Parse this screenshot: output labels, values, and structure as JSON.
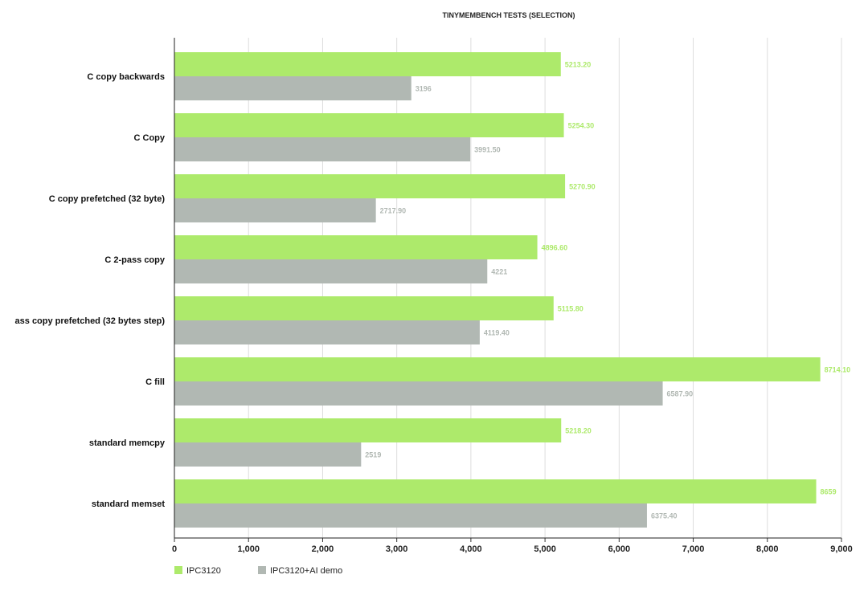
{
  "chart_data": {
    "type": "bar",
    "orientation": "horizontal",
    "title": "TINYMEMBENCH TESTS (SELECTION)",
    "xlabel": "",
    "ylabel": "",
    "xlim": [
      0,
      9000
    ],
    "x_ticks": [
      0,
      1000,
      2000,
      3000,
      4000,
      5000,
      6000,
      7000,
      8000,
      9000
    ],
    "x_tick_labels": [
      "0",
      "1,000",
      "2,000",
      "3,000",
      "4,000",
      "5,000",
      "6,000",
      "7,000",
      "8,000",
      "9,000"
    ],
    "grid": "vertical",
    "legend_position": "bottom-left",
    "categories": [
      "C copy backwards",
      "C Copy",
      "C copy prefetched (32 byte)",
      "C 2-pass copy",
      "ass copy prefetched (32 bytes step)",
      "C fill",
      "standard memcpy",
      "standard memset"
    ],
    "series": [
      {
        "name": "IPC3120",
        "color": "#adea6b",
        "label_color": "#adea6b",
        "values": [
          5213.2,
          5254.3,
          5270.9,
          4896.6,
          5115.8,
          8714.1,
          5218.2,
          8659
        ],
        "value_labels": [
          "5213.20",
          "5254.30",
          "5270.90",
          "4896.60",
          "5115.80",
          "8714.10",
          "5218.20",
          "8659"
        ]
      },
      {
        "name": "IPC3120+AI demo",
        "color": "#b1b8b3",
        "label_color": "#b1b8b3",
        "values": [
          3196,
          3991.5,
          2717.9,
          4221,
          4119.4,
          6587.9,
          2519,
          6375.4
        ],
        "value_labels": [
          "3196",
          "3991.50",
          "2717.90",
          "4221",
          "4119.40",
          "6587.90",
          "2519",
          "6375.40"
        ]
      }
    ]
  }
}
